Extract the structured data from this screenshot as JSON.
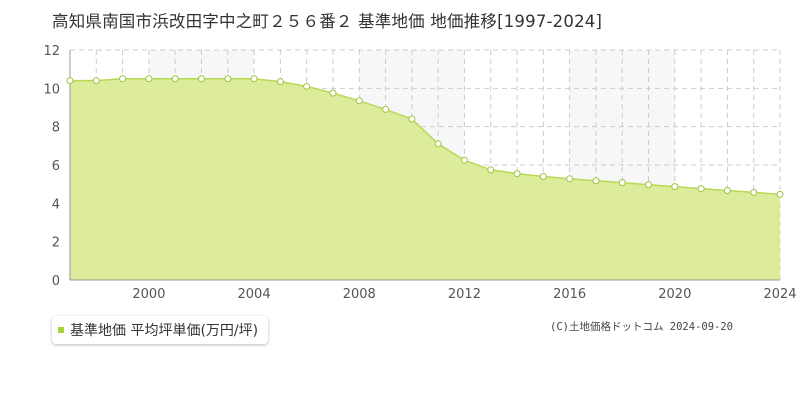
{
  "title": "高知県南国市浜改田字中之町２５６番２ 基準地価 地価推移[1997-2024]",
  "copyright": "(C)土地価格ドットコム 2024-09-20",
  "colors": {
    "fill": "#dcec9a",
    "line": "#b8d856",
    "point_stroke": "#9cc641",
    "legend_marker": "#a8d23a",
    "grid": "#cccccc",
    "shade": "#f7f7f7"
  },
  "chart_data": {
    "type": "area",
    "xlabel": "",
    "ylabel": "",
    "xlim": [
      1997,
      2024
    ],
    "ylim": [
      0,
      12
    ],
    "x_ticks": [
      "2000",
      "2004",
      "2008",
      "2012",
      "2016",
      "2020",
      "2024"
    ],
    "y_ticks": [
      "0",
      "2",
      "4",
      "6",
      "8",
      "10",
      "12"
    ],
    "grid": true,
    "legend_position": "bottom-left",
    "series": [
      {
        "name": "基準地価 平均坪単価(万円/坪)",
        "x": [
          1997,
          1998,
          1999,
          2000,
          2001,
          2002,
          2003,
          2004,
          2005,
          2006,
          2007,
          2008,
          2009,
          2010,
          2011,
          2012,
          2013,
          2014,
          2015,
          2016,
          2017,
          2018,
          2019,
          2020,
          2021,
          2022,
          2023,
          2024
        ],
        "values": [
          10.4,
          10.4,
          10.5,
          10.5,
          10.5,
          10.5,
          10.5,
          10.5,
          10.35,
          10.1,
          9.75,
          9.35,
          8.9,
          8.4,
          7.1,
          6.25,
          5.75,
          5.55,
          5.4,
          5.28,
          5.18,
          5.08,
          4.97,
          4.87,
          4.77,
          4.67,
          4.57,
          4.47
        ]
      }
    ]
  }
}
